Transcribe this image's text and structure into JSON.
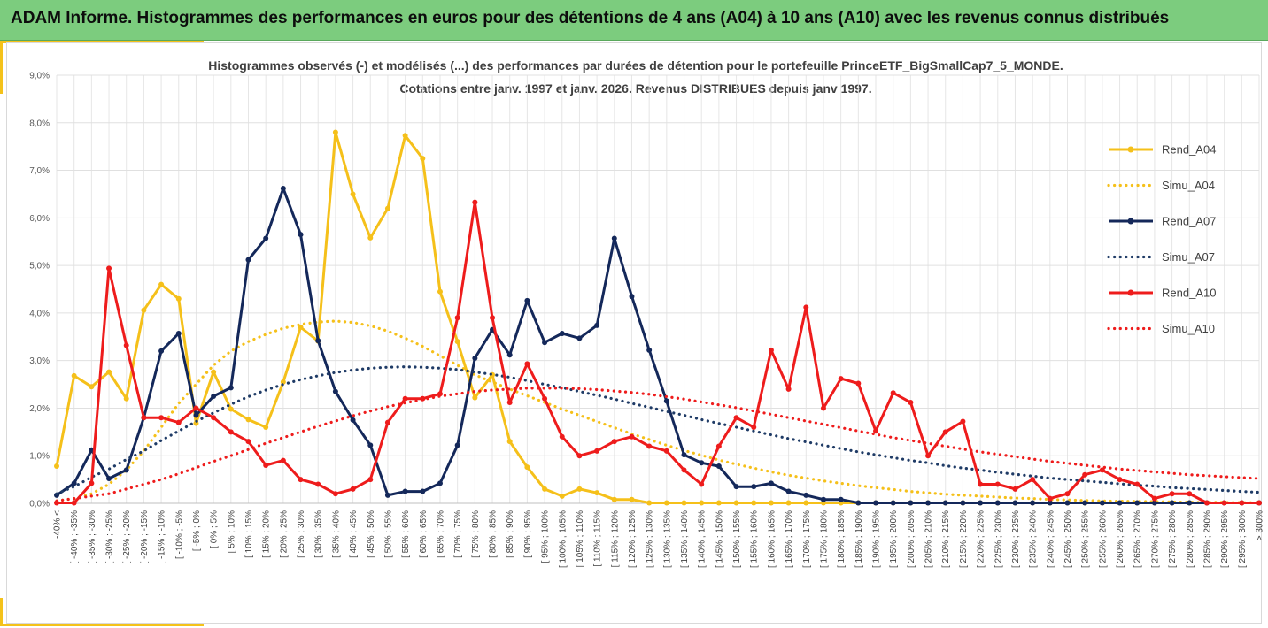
{
  "banner": {
    "title": "ADAM Informe. Histogrammes des performances en euros pour des détentions de 4 ans (A04) à 10 ans (A10) avec les revenus connus distribués"
  },
  "chart_data": {
    "type": "line",
    "title_lines": [
      "Histogrammes observés (-) et modélisés (...) des performances par durées de détention pour le portefeuille PrinceETF_BigSmallCap7_5_MONDE.",
      "Cotations entre janv. 1997 et janv. 2026. Revenus DISTRIBUES depuis janv 1997."
    ],
    "xlabel": "",
    "ylabel": "",
    "ylim": [
      0,
      9
    ],
    "yticks": [
      "0,0%",
      "1,0%",
      "2,0%",
      "3,0%",
      "4,0%",
      "5,0%",
      "6,0%",
      "7,0%",
      "8,0%",
      "9,0%"
    ],
    "grid": true,
    "legend_position": "right",
    "categories": [
      "-40% <",
      "[ -40% ; -35%",
      "[ -35% ; -30%",
      "[ -30% ; -25%",
      "[ -25% ; -20%",
      "[ -20% ; -15%",
      "[ -15% ; -10%",
      "[ -10% ; -5%",
      "[ -5% ; 0%",
      "[ 0% ; 5%",
      "[ 5% ; 10%",
      "[ 10% ; 15%",
      "[ 15% ; 20%",
      "[ 20% ; 25%",
      "[ 25% ; 30%",
      "[ 30% ; 35%",
      "[ 35% ; 40%",
      "[ 40% ; 45%",
      "[ 45% ; 50%",
      "[ 50% ; 55%",
      "[ 55% ; 60%",
      "[ 60% ; 65%",
      "[ 65% ; 70%",
      "[ 70% ; 75%",
      "[ 75% ; 80%",
      "[ 80% ; 85%",
      "[ 85% ; 90%",
      "[ 90% ; 95%",
      "[ 95% ; 100%",
      "[ 100% ; 105%",
      "[ 105% ; 110%",
      "[ 110% ; 115%",
      "[ 115% ; 120%",
      "[ 120% ; 125%",
      "[ 125% ; 130%",
      "[ 130% ; 135%",
      "[ 135% ; 140%",
      "[ 140% ; 145%",
      "[ 145% ; 150%",
      "[ 150% ; 155%",
      "[ 155% ; 160%",
      "[ 160% ; 165%",
      "[ 165% ; 170%",
      "[ 170% ; 175%",
      "[ 175% ; 180%",
      "[ 180% ; 185%",
      "[ 185% ; 190%",
      "[ 190% ; 195%",
      "[ 195% ; 200%",
      "[ 200% ; 205%",
      "[ 205% ; 210%",
      "[ 210% ; 215%",
      "[ 215% ; 220%",
      "[ 220% ; 225%",
      "[ 225% ; 230%",
      "[ 230% ; 235%",
      "[ 235% ; 240%",
      "[ 240% ; 245%",
      "[ 245% ; 250%",
      "[ 250% ; 255%",
      "[ 255% ; 260%",
      "[ 260% ; 265%",
      "[ 265% ; 270%",
      "[ 270% ; 275%",
      "[ 275% ; 280%",
      "[ 280% ; 285%",
      "[ 285% ; 290%",
      "[ 290% ; 295%",
      "[ 295% ; 300%",
      "> 300%"
    ],
    "series": [
      {
        "name": "Rend_A04",
        "color": "#f5c01a",
        "style": "solid",
        "values": [
          0.78,
          2.68,
          2.45,
          2.76,
          2.2,
          4.06,
          4.6,
          4.3,
          1.68,
          2.76,
          1.98,
          1.76,
          1.6,
          2.55,
          3.7,
          3.41,
          7.8,
          6.5,
          5.58,
          6.2,
          7.73,
          7.25,
          4.45,
          3.4,
          2.22,
          2.7,
          1.3,
          0.76,
          0.3,
          0.15,
          0.3,
          0.22,
          0.08,
          0.08,
          0.01,
          0.01,
          0.01,
          0.01,
          0.01,
          0.01,
          0.01,
          0.01,
          0.01,
          0.01,
          0.01,
          0.01,
          0.01,
          0.01,
          0.01,
          0.01,
          0.01,
          0.01,
          0.01,
          0.01,
          0.01,
          0.01,
          0.01,
          0.01,
          0.01,
          0.01,
          0.01,
          0.01,
          0.01,
          0.01,
          0.01,
          0.01,
          0.01,
          0.01,
          0.01,
          0.01
        ]
      },
      {
        "name": "Simu_A04",
        "color": "#f5c01a",
        "style": "dotted",
        "values": [
          0.05,
          0.1,
          0.2,
          0.4,
          0.7,
          1.1,
          1.6,
          2.1,
          2.5,
          2.9,
          3.2,
          3.4,
          3.55,
          3.68,
          3.76,
          3.81,
          3.83,
          3.8,
          3.73,
          3.62,
          3.47,
          3.3,
          3.1,
          2.9,
          2.7,
          2.55,
          2.4,
          2.26,
          2.12,
          1.98,
          1.85,
          1.72,
          1.59,
          1.46,
          1.34,
          1.22,
          1.11,
          1.01,
          0.91,
          0.82,
          0.74,
          0.66,
          0.59,
          0.53,
          0.47,
          0.42,
          0.37,
          0.33,
          0.29,
          0.25,
          0.22,
          0.19,
          0.17,
          0.15,
          0.13,
          0.11,
          0.1,
          0.08,
          0.07,
          0.06,
          0.05,
          0.045,
          0.04,
          0.035,
          0.03,
          0.025,
          0.02,
          0.02,
          0.015,
          0.015
        ]
      },
      {
        "name": "Rend_A07",
        "color": "#14285a",
        "style": "solid",
        "values": [
          0.17,
          0.42,
          1.12,
          0.52,
          0.7,
          1.8,
          3.2,
          3.57,
          1.85,
          2.25,
          2.43,
          5.12,
          5.57,
          6.62,
          5.65,
          3.42,
          2.35,
          1.75,
          1.22,
          0.17,
          0.25,
          0.25,
          0.42,
          1.22,
          3.05,
          3.65,
          3.12,
          4.26,
          3.38,
          3.57,
          3.47,
          3.74,
          5.57,
          4.35,
          3.22,
          2.15,
          1.02,
          0.85,
          0.78,
          0.35,
          0.35,
          0.42,
          0.25,
          0.17,
          0.08,
          0.08,
          0.01,
          0.01,
          0.01,
          0.01,
          0.01,
          0.01,
          0.01,
          0.01,
          0.01,
          0.01,
          0.01,
          0.01,
          0.01,
          0.01,
          0.01,
          0.01,
          0.01,
          0.01,
          0.01,
          0.01,
          0.01,
          0.01,
          0.01,
          0.01
        ]
      },
      {
        "name": "Simu_A07",
        "color": "#1f3b66",
        "style": "dotted",
        "values": [
          0.2,
          0.35,
          0.55,
          0.72,
          0.92,
          1.1,
          1.32,
          1.52,
          1.72,
          1.9,
          2.08,
          2.24,
          2.38,
          2.5,
          2.6,
          2.68,
          2.75,
          2.8,
          2.84,
          2.86,
          2.87,
          2.86,
          2.84,
          2.81,
          2.76,
          2.71,
          2.65,
          2.58,
          2.5,
          2.43,
          2.35,
          2.27,
          2.19,
          2.1,
          2.02,
          1.93,
          1.85,
          1.76,
          1.68,
          1.6,
          1.52,
          1.44,
          1.36,
          1.29,
          1.22,
          1.15,
          1.08,
          1.02,
          0.96,
          0.9,
          0.85,
          0.79,
          0.74,
          0.7,
          0.65,
          0.61,
          0.57,
          0.53,
          0.5,
          0.47,
          0.44,
          0.41,
          0.38,
          0.36,
          0.33,
          0.31,
          0.29,
          0.27,
          0.25,
          0.23
        ]
      },
      {
        "name": "Rend_A10",
        "color": "#ee1c1c",
        "style": "solid",
        "values": [
          0.01,
          0.01,
          0.42,
          4.94,
          3.32,
          1.8,
          1.8,
          1.7,
          2.0,
          1.8,
          1.5,
          1.3,
          0.8,
          0.9,
          0.5,
          0.4,
          0.2,
          0.3,
          0.5,
          1.7,
          2.2,
          2.2,
          2.3,
          3.9,
          6.33,
          3.9,
          2.12,
          2.93,
          2.2,
          1.4,
          1.0,
          1.1,
          1.3,
          1.4,
          1.2,
          1.1,
          0.7,
          0.4,
          1.2,
          1.8,
          1.6,
          3.22,
          2.4,
          4.12,
          2.0,
          2.62,
          2.52,
          1.52,
          2.32,
          2.12,
          1.0,
          1.5,
          1.72,
          0.4,
          0.4,
          0.3,
          0.5,
          0.1,
          0.2,
          0.6,
          0.7,
          0.5,
          0.4,
          0.1,
          0.2,
          0.2,
          0.01,
          0.01,
          0.01,
          0.01
        ]
      },
      {
        "name": "Simu_A10",
        "color": "#ee1c1c",
        "style": "dotted",
        "values": [
          0.05,
          0.1,
          0.15,
          0.2,
          0.3,
          0.4,
          0.5,
          0.62,
          0.75,
          0.88,
          1.0,
          1.13,
          1.26,
          1.38,
          1.5,
          1.62,
          1.73,
          1.84,
          1.94,
          2.03,
          2.11,
          2.18,
          2.25,
          2.3,
          2.35,
          2.38,
          2.4,
          2.42,
          2.42,
          2.42,
          2.41,
          2.39,
          2.36,
          2.33,
          2.29,
          2.24,
          2.19,
          2.13,
          2.07,
          2.01,
          1.94,
          1.87,
          1.8,
          1.73,
          1.66,
          1.59,
          1.52,
          1.45,
          1.38,
          1.32,
          1.26,
          1.2,
          1.14,
          1.08,
          1.03,
          0.98,
          0.93,
          0.88,
          0.84,
          0.8,
          0.76,
          0.72,
          0.69,
          0.66,
          0.63,
          0.6,
          0.58,
          0.56,
          0.54,
          0.52
        ]
      }
    ]
  }
}
